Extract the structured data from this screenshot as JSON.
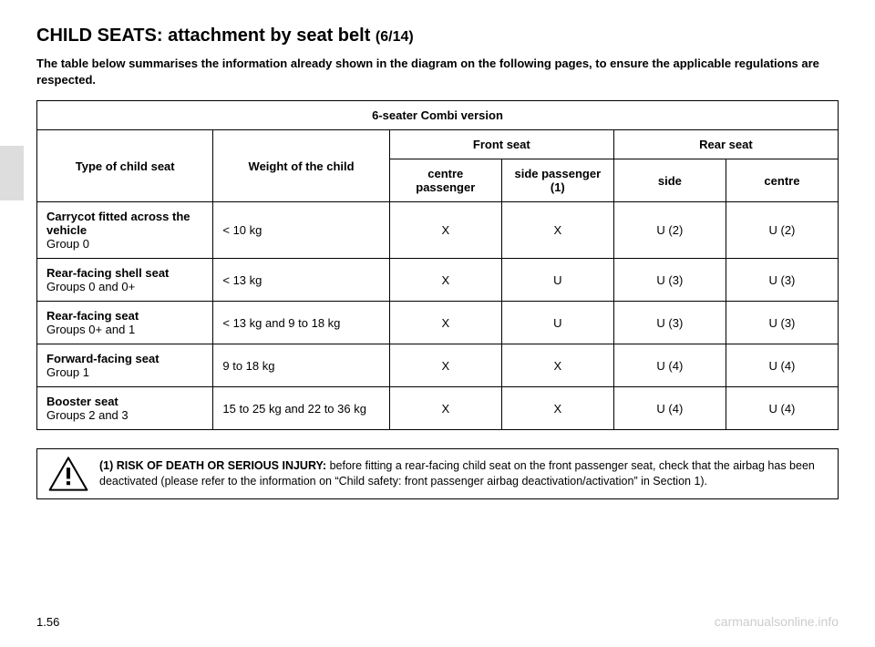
{
  "title_main": "CHILD SEATS: attachment by seat belt ",
  "title_page": "(6/14)",
  "intro": "The table below summarises the information already shown in the diagram on the following pages, to ensure the applicable regulations are respected.",
  "table": {
    "caption": "6-seater Combi version",
    "headers": {
      "type": "Type of child seat",
      "weight": "Weight of the child",
      "front": "Front seat",
      "rear": "Rear seat",
      "front_centre": "centre passenger",
      "front_side": "side passenger (1)",
      "rear_side": "side",
      "rear_centre": "centre"
    },
    "rows": [
      {
        "name": "Carrycot fitted across the vehicle",
        "sub": "Group 0",
        "weight": "< 10 kg",
        "front_centre": "X",
        "front_side": "X",
        "rear_side": "U (2)",
        "rear_centre": "U (2)"
      },
      {
        "name": "Rear-facing shell seat",
        "sub": "Groups 0 and 0+",
        "weight": "< 13 kg",
        "front_centre": "X",
        "front_side": "U",
        "rear_side": "U (3)",
        "rear_centre": "U (3)"
      },
      {
        "name": "Rear-facing seat",
        "sub": "Groups 0+ and 1",
        "weight": "< 13 kg and 9 to 18 kg",
        "front_centre": "X",
        "front_side": "U",
        "rear_side": "U (3)",
        "rear_centre": "U (3)"
      },
      {
        "name": "Forward-facing seat",
        "sub": "Group 1",
        "weight": "9 to 18 kg",
        "front_centre": "X",
        "front_side": "X",
        "rear_side": "U (4)",
        "rear_centre": "U (4)"
      },
      {
        "name": "Booster seat",
        "sub": "Groups 2 and 3",
        "weight": "15 to 25 kg and 22 to 36 kg",
        "front_centre": "X",
        "front_side": "X",
        "rear_side": "U (4)",
        "rear_centre": "U (4)"
      }
    ],
    "col_widths": [
      "22%",
      "22%",
      "14%",
      "14%",
      "14%",
      "14%"
    ]
  },
  "warning": {
    "lead": "(1) RISK OF DEATH OR SERIOUS INJURY: ",
    "body": "before fitting a rear-facing child seat on the front passenger seat, check that the airbag has been deactivated (please refer to the information on “Child safety: front passenger airbag deactivation/activation” in Section 1)."
  },
  "page_number": "1.56",
  "watermark": "carmanualsonline.info",
  "colors": {
    "text": "#000000",
    "border": "#000000",
    "watermark": "#cccccc",
    "tab": "#dddddd",
    "bg": "#ffffff"
  }
}
